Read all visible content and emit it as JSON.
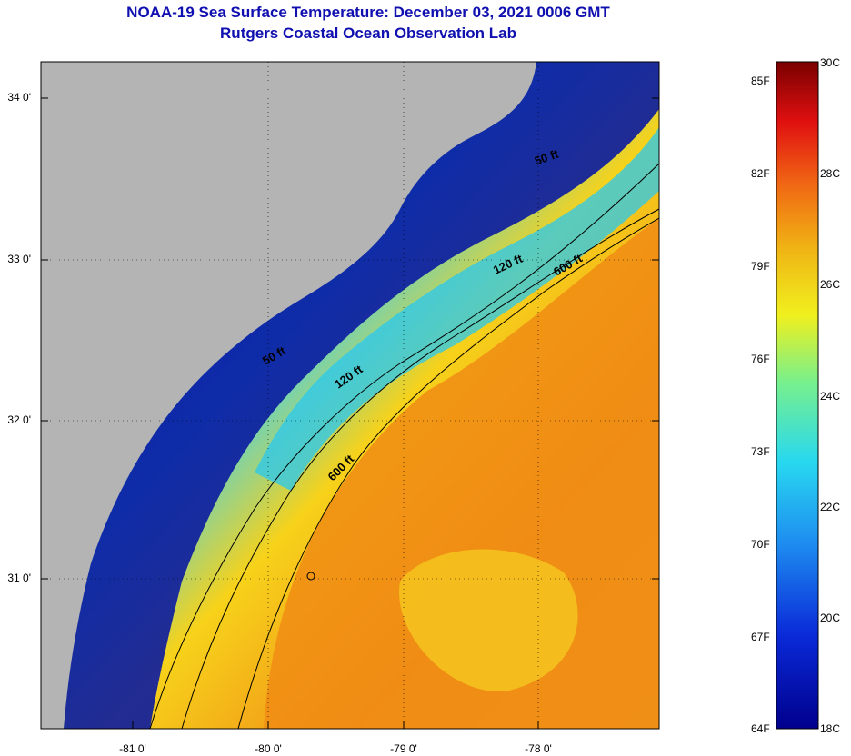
{
  "title": {
    "line1": "NOAA-19 Sea Surface Temperature:  December 03, 2021 0006 GMT",
    "line2": "Rutgers Coastal Ocean Observation Lab"
  },
  "axes": {
    "lat_labels": [
      "34 0'",
      "33 0'",
      "32 0'",
      "31 0'"
    ],
    "lon_labels": [
      "-81 0'",
      "-80 0'",
      "-79 0'",
      "-78 0'"
    ]
  },
  "contours": {
    "shallow": "50 ft",
    "mid": "120 ft",
    "deep": "600 ft"
  },
  "colorbar": {
    "fahrenheit": [
      "85F",
      "82F",
      "79F",
      "76F",
      "73F",
      "70F",
      "67F",
      "64F"
    ],
    "celsius": [
      "30C",
      "28C",
      "26C",
      "24C",
      "22C",
      "20C",
      "18C"
    ]
  },
  "colors": {
    "title": "#1010b0",
    "land": "#b4b4b4",
    "cold": "#0a1aa0",
    "warm": "#f08c14"
  }
}
